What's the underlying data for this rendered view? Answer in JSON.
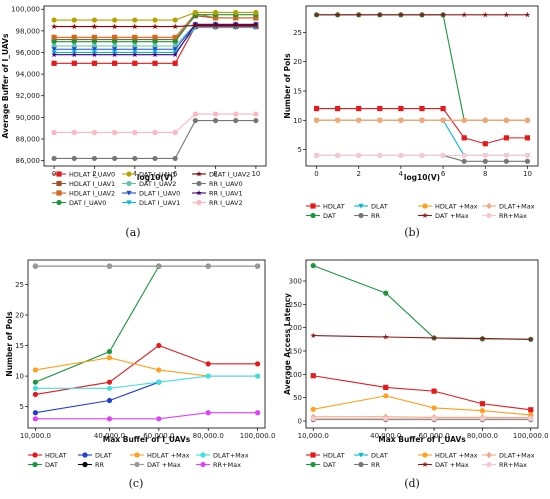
{
  "chart_data": [
    {
      "panel": "a",
      "type": "line",
      "caption": "(a)",
      "xlabel": "log10(V)",
      "ylabel": "Average Buffer of I_UAVs",
      "xlim": [
        -0.5,
        10.5
      ],
      "ylim": [
        85500,
        100300
      ],
      "xticks": [
        0,
        2,
        4,
        6,
        8,
        10
      ],
      "yticks": [
        86000,
        88000,
        90000,
        92000,
        94000,
        96000,
        98000,
        100000
      ],
      "ytick_labels": [
        "86,000",
        "88,000",
        "90,000",
        "92,000",
        "94,000",
        "96,000",
        "98,000",
        "100,000"
      ],
      "x": [
        0,
        1,
        2,
        3,
        4,
        5,
        6,
        7,
        8,
        9,
        10
      ],
      "series": [
        {
          "name": "HDLAT I_UAV0",
          "color": "#e41a1c",
          "marker": "square",
          "values": [
            95000,
            95000,
            95000,
            95000,
            95000,
            95000,
            95000,
            98400,
            98400,
            98400,
            98400
          ]
        },
        {
          "name": "HDLAT I_UAV1",
          "color": "#a0522d",
          "marker": "square",
          "values": [
            97200,
            97200,
            97200,
            97200,
            97200,
            97200,
            97200,
            99400,
            99200,
            99200,
            99200
          ]
        },
        {
          "name": "HDLAT I_UAV2",
          "color": "#d2691e",
          "marker": "square",
          "values": [
            97400,
            97400,
            97400,
            97400,
            97400,
            97400,
            97400,
            99600,
            99200,
            99200,
            99200
          ]
        },
        {
          "name": "DAT I_UAV0",
          "color": "#1a9641",
          "marker": "circle",
          "values": [
            97000,
            97000,
            97000,
            97000,
            97000,
            97000,
            97000,
            99500,
            99500,
            99500,
            99500
          ]
        },
        {
          "name": "DAT I_UAV1",
          "color": "#b5a100",
          "marker": "circle",
          "values": [
            99000,
            99000,
            99000,
            99000,
            99000,
            99000,
            99000,
            99700,
            99700,
            99700,
            99700
          ]
        },
        {
          "name": "DAT I_UAV2",
          "color": "#66c2a5",
          "marker": "circle",
          "values": [
            96600,
            96600,
            96600,
            96600,
            96600,
            96600,
            96600,
            98600,
            98600,
            98600,
            98600
          ]
        },
        {
          "name": "DLAT I_UAV0",
          "color": "#1f4fd1",
          "marker": "tri_down",
          "values": [
            96300,
            96300,
            96300,
            96300,
            96300,
            96300,
            96300,
            98600,
            98600,
            98600,
            98600
          ]
        },
        {
          "name": "DLAT I_UAV1",
          "color": "#00bcd4",
          "marker": "tri_down",
          "values": [
            96000,
            96000,
            96000,
            96000,
            96000,
            96000,
            96000,
            98300,
            98300,
            98300,
            98300
          ]
        },
        {
          "name": "RR I_UAV0",
          "color": "#777777",
          "marker": "circle",
          "values": [
            86200,
            86200,
            86200,
            86200,
            86200,
            86200,
            86200,
            89700,
            89700,
            89700,
            89700
          ]
        },
        {
          "name": "RR I_UAV1",
          "color": "#4b0082",
          "marker": "star",
          "values": [
            95800,
            95800,
            95800,
            95800,
            95800,
            95800,
            95800,
            98600,
            98600,
            98600,
            98600
          ]
        },
        {
          "name": "RR I_UAV2",
          "color": "#ffb6c1",
          "marker": "circle",
          "values": [
            88600,
            88600,
            88600,
            88600,
            88600,
            88600,
            88600,
            90300,
            90300,
            90300,
            90300
          ]
        },
        {
          "name": "DLAT I_UAV2",
          "color": "#8b0000",
          "marker": "star",
          "values": [
            98400,
            98400,
            98400,
            98400,
            98400,
            98400,
            98400,
            98500,
            98500,
            98500,
            98500
          ]
        }
      ],
      "legend": [
        [
          "HDLAT I_UAV0",
          "DAT I_UAV1",
          "DLAT I_UAV2"
        ],
        [
          "HDLAT I_UAV1",
          "DAT I_UAV2",
          "RR I_UAV0"
        ],
        [
          "HDLAT I_UAV2",
          "DLAT I_UAV0",
          "RR I_UAV1"
        ],
        [
          "DAT I_UAV0",
          "DLAT I_UAV1",
          "RR I_UAV2"
        ]
      ]
    },
    {
      "panel": "b",
      "type": "line",
      "caption": "(b)",
      "xlabel": "log10(V)",
      "ylabel": "Number of PoIs",
      "xlim": [
        -0.5,
        10.5
      ],
      "ylim": [
        2.2,
        29.5
      ],
      "xticks": [
        0,
        2,
        4,
        6,
        8,
        10
      ],
      "yticks": [
        5,
        10,
        15,
        20,
        25
      ],
      "x": [
        0,
        1,
        2,
        3,
        4,
        5,
        6,
        7,
        8,
        9,
        10
      ],
      "series": [
        {
          "name": "HDLAT",
          "color": "#e41a1c",
          "marker": "square",
          "values": [
            12,
            12,
            12,
            12,
            12,
            12,
            12,
            7,
            6,
            7,
            7
          ]
        },
        {
          "name": "DAT",
          "color": "#1a9641",
          "marker": "circle",
          "values": [
            28,
            28,
            28,
            28,
            28,
            28,
            28,
            10,
            10,
            10,
            10
          ]
        },
        {
          "name": "DLAT",
          "color": "#00bcd4",
          "marker": "tri_down",
          "values": [
            10,
            10,
            10,
            10,
            10,
            10,
            10,
            4,
            4,
            4,
            4
          ]
        },
        {
          "name": "RR",
          "color": "#777777",
          "marker": "circle",
          "values": [
            4,
            4,
            4,
            4,
            4,
            4,
            4,
            3,
            3,
            3,
            3
          ]
        },
        {
          "name": "HDLAT +Max",
          "color": "#ff9f1c",
          "marker": "circle",
          "values": [
            10,
            10,
            10,
            10,
            10,
            10,
            10,
            10,
            10,
            10,
            10
          ]
        },
        {
          "name": "DAT +Max",
          "color": "#8b1a1a",
          "marker": "star",
          "values": [
            28,
            28,
            28,
            28,
            28,
            28,
            28,
            28,
            28,
            28,
            28
          ]
        },
        {
          "name": "DLAT +Max",
          "color": "#f4a582",
          "marker": "diamond",
          "values": [
            10,
            10,
            10,
            10,
            10,
            10,
            10,
            10,
            10,
            10,
            10
          ]
        },
        {
          "name": "RR +Max",
          "color": "#f8c8d0",
          "marker": "circle",
          "values": [
            4,
            4,
            4,
            4,
            4,
            4,
            4,
            4,
            4,
            4,
            4
          ]
        }
      ],
      "legend": [
        [
          "HDLAT",
          "DLAT",
          "HDLAT +Max",
          "DLAT+Max"
        ],
        [
          "DAT",
          "RR",
          "DAT +Max",
          "RR+Max"
        ]
      ]
    },
    {
      "panel": "c",
      "type": "line",
      "caption": "(c)",
      "xlabel": "Max Buffer of I_UAVs",
      "ylabel": "Number of PoIs",
      "xlim": [
        7000,
        103000
      ],
      "ylim": [
        1.5,
        29
      ],
      "xticks": [
        10000,
        40000,
        60000,
        80000,
        100000
      ],
      "xtick_labels": [
        "10,000.0",
        "40,000.0",
        "60,000.0",
        "80,000.0",
        "100,000.0"
      ],
      "yticks": [
        5,
        10,
        15,
        20,
        25
      ],
      "categories": [
        10000,
        40000,
        60000,
        80000,
        100000
      ],
      "series": [
        {
          "name": "HDLAT",
          "color": "#e41a1c",
          "marker": "circle",
          "values": [
            7,
            9,
            15,
            12,
            12
          ]
        },
        {
          "name": "DAT",
          "color": "#1a9641",
          "marker": "circle",
          "values": [
            9,
            14,
            28,
            null,
            null
          ]
        },
        {
          "name": "DLAT",
          "color": "#1f3fd1",
          "marker": "circle",
          "values": [
            4,
            6,
            9,
            null,
            null
          ]
        },
        {
          "name": "RR",
          "color": "#000000",
          "marker": "circle",
          "values": [
            28,
            28,
            28,
            28,
            28
          ]
        },
        {
          "name": "HDLAT +Max",
          "color": "#ff9f1c",
          "marker": "circle",
          "values": [
            11,
            13,
            11,
            10,
            10
          ]
        },
        {
          "name": "DAT +Max",
          "color": "#999999",
          "marker": "circle",
          "values": [
            28,
            28,
            28,
            28,
            28
          ]
        },
        {
          "name": "DLAT+Max",
          "color": "#40e0e0",
          "marker": "circle",
          "values": [
            8,
            8,
            9,
            10,
            10
          ]
        },
        {
          "name": "RR+Max",
          "color": "#e040fb",
          "marker": "circle",
          "values": [
            3,
            3,
            3,
            4,
            4
          ]
        }
      ],
      "legend": [
        [
          "HDLAT",
          "DLAT",
          "HDLAT +Max",
          "DLAT+Max"
        ],
        [
          "DAT",
          "RR",
          "DAT +Max",
          "RR+Max"
        ]
      ]
    },
    {
      "panel": "d",
      "type": "line",
      "caption": "(d)",
      "xlabel": "Max Buffer of I_UAVs",
      "ylabel": "Average Access Latency",
      "xlim": [
        7000,
        103000
      ],
      "ylim": [
        -15,
        345
      ],
      "xticks": [
        10000,
        40000,
        60000,
        80000,
        100000
      ],
      "xtick_labels": [
        "10,000.0",
        "40,000.0",
        "60,000.0",
        "80,000.0",
        "100,000.0"
      ],
      "yticks": [
        0,
        50,
        100,
        150,
        200,
        250,
        300
      ],
      "categories": [
        10000,
        40000,
        60000,
        80000,
        100000
      ],
      "series": [
        {
          "name": "HDLAT",
          "color": "#e41a1c",
          "marker": "square",
          "values": [
            97,
            72,
            64,
            37,
            24
          ]
        },
        {
          "name": "DAT",
          "color": "#1a9641",
          "marker": "circle",
          "values": [
            333,
            274,
            178,
            176,
            175
          ]
        },
        {
          "name": "DLAT",
          "color": "#00bcd4",
          "marker": "tri_down",
          "values": [
            5,
            5,
            5,
            5,
            5
          ]
        },
        {
          "name": "RR",
          "color": "#777777",
          "marker": "circle",
          "values": [
            3,
            3,
            3,
            3,
            3
          ]
        },
        {
          "name": "HDLAT +Max",
          "color": "#ff9f1c",
          "marker": "circle",
          "values": [
            25,
            54,
            28,
            22,
            13
          ]
        },
        {
          "name": "DAT +Max",
          "color": "#8b1a1a",
          "marker": "star",
          "values": [
            183,
            180,
            178,
            177,
            175
          ]
        },
        {
          "name": "DLAT+Max",
          "color": "#f4a582",
          "marker": "diamond",
          "values": [
            9,
            9,
            8,
            8,
            7
          ]
        },
        {
          "name": "RR+Max",
          "color": "#f8c8d0",
          "marker": "circle",
          "values": [
            5,
            5,
            5,
            5,
            5
          ]
        }
      ],
      "legend": [
        [
          "HDLAT",
          "DLAT",
          "HDLAT +Max",
          "DLAT+Max"
        ],
        [
          "DAT",
          "RR",
          "DAT +Max",
          "RR+Max"
        ]
      ]
    }
  ]
}
